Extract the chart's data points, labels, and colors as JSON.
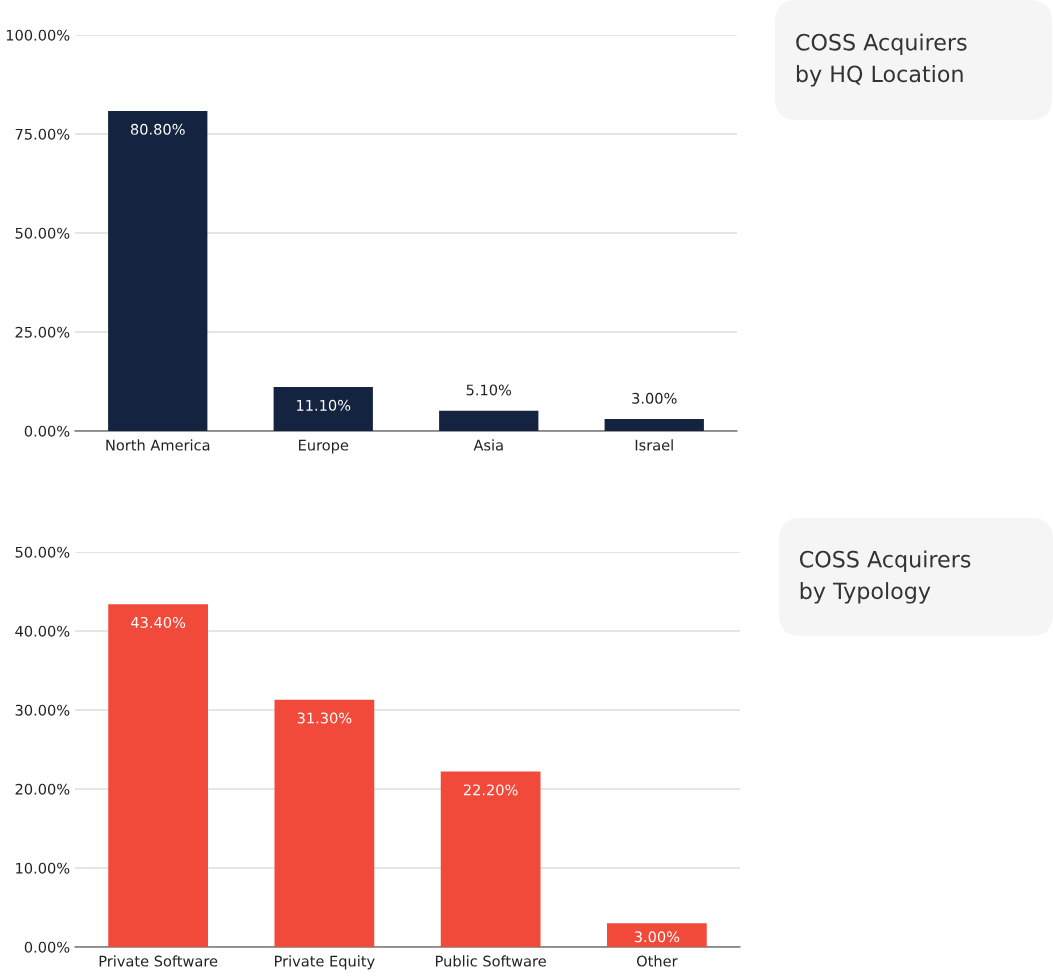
{
  "chart_data": [
    {
      "type": "bar",
      "categories": [
        "North America",
        "Europe",
        "Asia",
        "Israel"
      ],
      "values": [
        80.8,
        11.1,
        5.1,
        3.0
      ],
      "value_labels": [
        "80.80%",
        "11.10%",
        "5.10%",
        "3.00%"
      ],
      "color": "#14233f",
      "ylim": [
        0,
        100
      ],
      "yticks": [
        {
          "value": 0,
          "label": "0.00%"
        },
        {
          "value": 25,
          "label": "25.00%"
        },
        {
          "value": 50,
          "label": "50.00%"
        },
        {
          "value": 75,
          "label": "75.00%"
        },
        {
          "value": 100,
          "label": "100.00%"
        }
      ],
      "grid": "y"
    },
    {
      "type": "other",
      "title": "COSS Acquirers\nby HQ Location"
    },
    {
      "type": "bar",
      "categories": [
        "Private Software",
        "Private Equity",
        "Public Software",
        "Other"
      ],
      "values": [
        43.4,
        31.3,
        22.2,
        3.0
      ],
      "value_labels": [
        "43.40%",
        "31.30%",
        "22.20%",
        "3.00%"
      ],
      "color": "#f24a3a",
      "ylim": [
        0,
        50
      ],
      "yticks": [
        {
          "value": 0,
          "label": "0.00%"
        },
        {
          "value": 10,
          "label": "10.00%"
        },
        {
          "value": 20,
          "label": "20.00%"
        },
        {
          "value": 30,
          "label": "30.00%"
        },
        {
          "value": 40,
          "label": "40.00%"
        },
        {
          "value": 50,
          "label": "50.00%"
        }
      ],
      "grid": "y"
    },
    {
      "type": "other",
      "title": "COSS Acquirers\nby Typology"
    }
  ]
}
